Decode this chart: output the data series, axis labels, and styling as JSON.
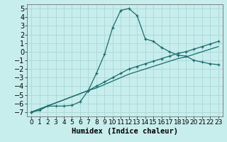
{
  "xlabel": "Humidex (Indice chaleur)",
  "bg_color": "#c8eded",
  "grid_color": "#a8d8d8",
  "line_color": "#1a6b6b",
  "xlim": [
    -0.5,
    23.5
  ],
  "ylim": [
    -7.5,
    5.5
  ],
  "xticks": [
    0,
    1,
    2,
    3,
    4,
    5,
    6,
    7,
    8,
    9,
    10,
    11,
    12,
    13,
    14,
    15,
    16,
    17,
    18,
    19,
    20,
    21,
    22,
    23
  ],
  "yticks": [
    -7,
    -6,
    -5,
    -4,
    -3,
    -2,
    -1,
    0,
    1,
    2,
    3,
    4,
    5
  ],
  "line1_x": [
    0,
    1,
    2,
    3,
    4,
    5,
    6,
    7,
    8,
    9,
    10,
    11,
    12,
    13,
    14,
    15,
    16,
    17,
    18,
    19,
    20,
    21,
    22,
    23
  ],
  "line1_y": [
    -7.0,
    -6.8,
    -6.3,
    -6.3,
    -6.3,
    -6.2,
    -5.8,
    -4.5,
    -2.5,
    -0.3,
    2.8,
    4.8,
    5.0,
    4.2,
    1.5,
    1.2,
    0.5,
    0.0,
    -0.4,
    -0.5,
    -1.0,
    -1.2,
    -1.4,
    -1.5
  ],
  "line2_x": [
    0,
    7,
    8,
    9,
    10,
    11,
    12,
    13,
    14,
    15,
    16,
    17,
    18,
    19,
    20,
    21,
    22,
    23
  ],
  "line2_y": [
    -7.0,
    -4.5,
    -4.0,
    -3.5,
    -3.0,
    -2.5,
    -2.0,
    -1.7,
    -1.4,
    -1.1,
    -0.8,
    -0.5,
    -0.2,
    0.0,
    0.3,
    0.6,
    0.9,
    1.2
  ],
  "line3_x": [
    0,
    7,
    8,
    9,
    10,
    11,
    12,
    13,
    14,
    15,
    16,
    17,
    18,
    19,
    20,
    21,
    22,
    23
  ],
  "line3_y": [
    -7.0,
    -4.5,
    -4.2,
    -3.8,
    -3.4,
    -3.0,
    -2.6,
    -2.3,
    -2.0,
    -1.7,
    -1.4,
    -1.1,
    -0.8,
    -0.6,
    -0.3,
    0.0,
    0.3,
    0.6
  ],
  "tick_fontsize": 6.5,
  "xlabel_fontsize": 7.5
}
